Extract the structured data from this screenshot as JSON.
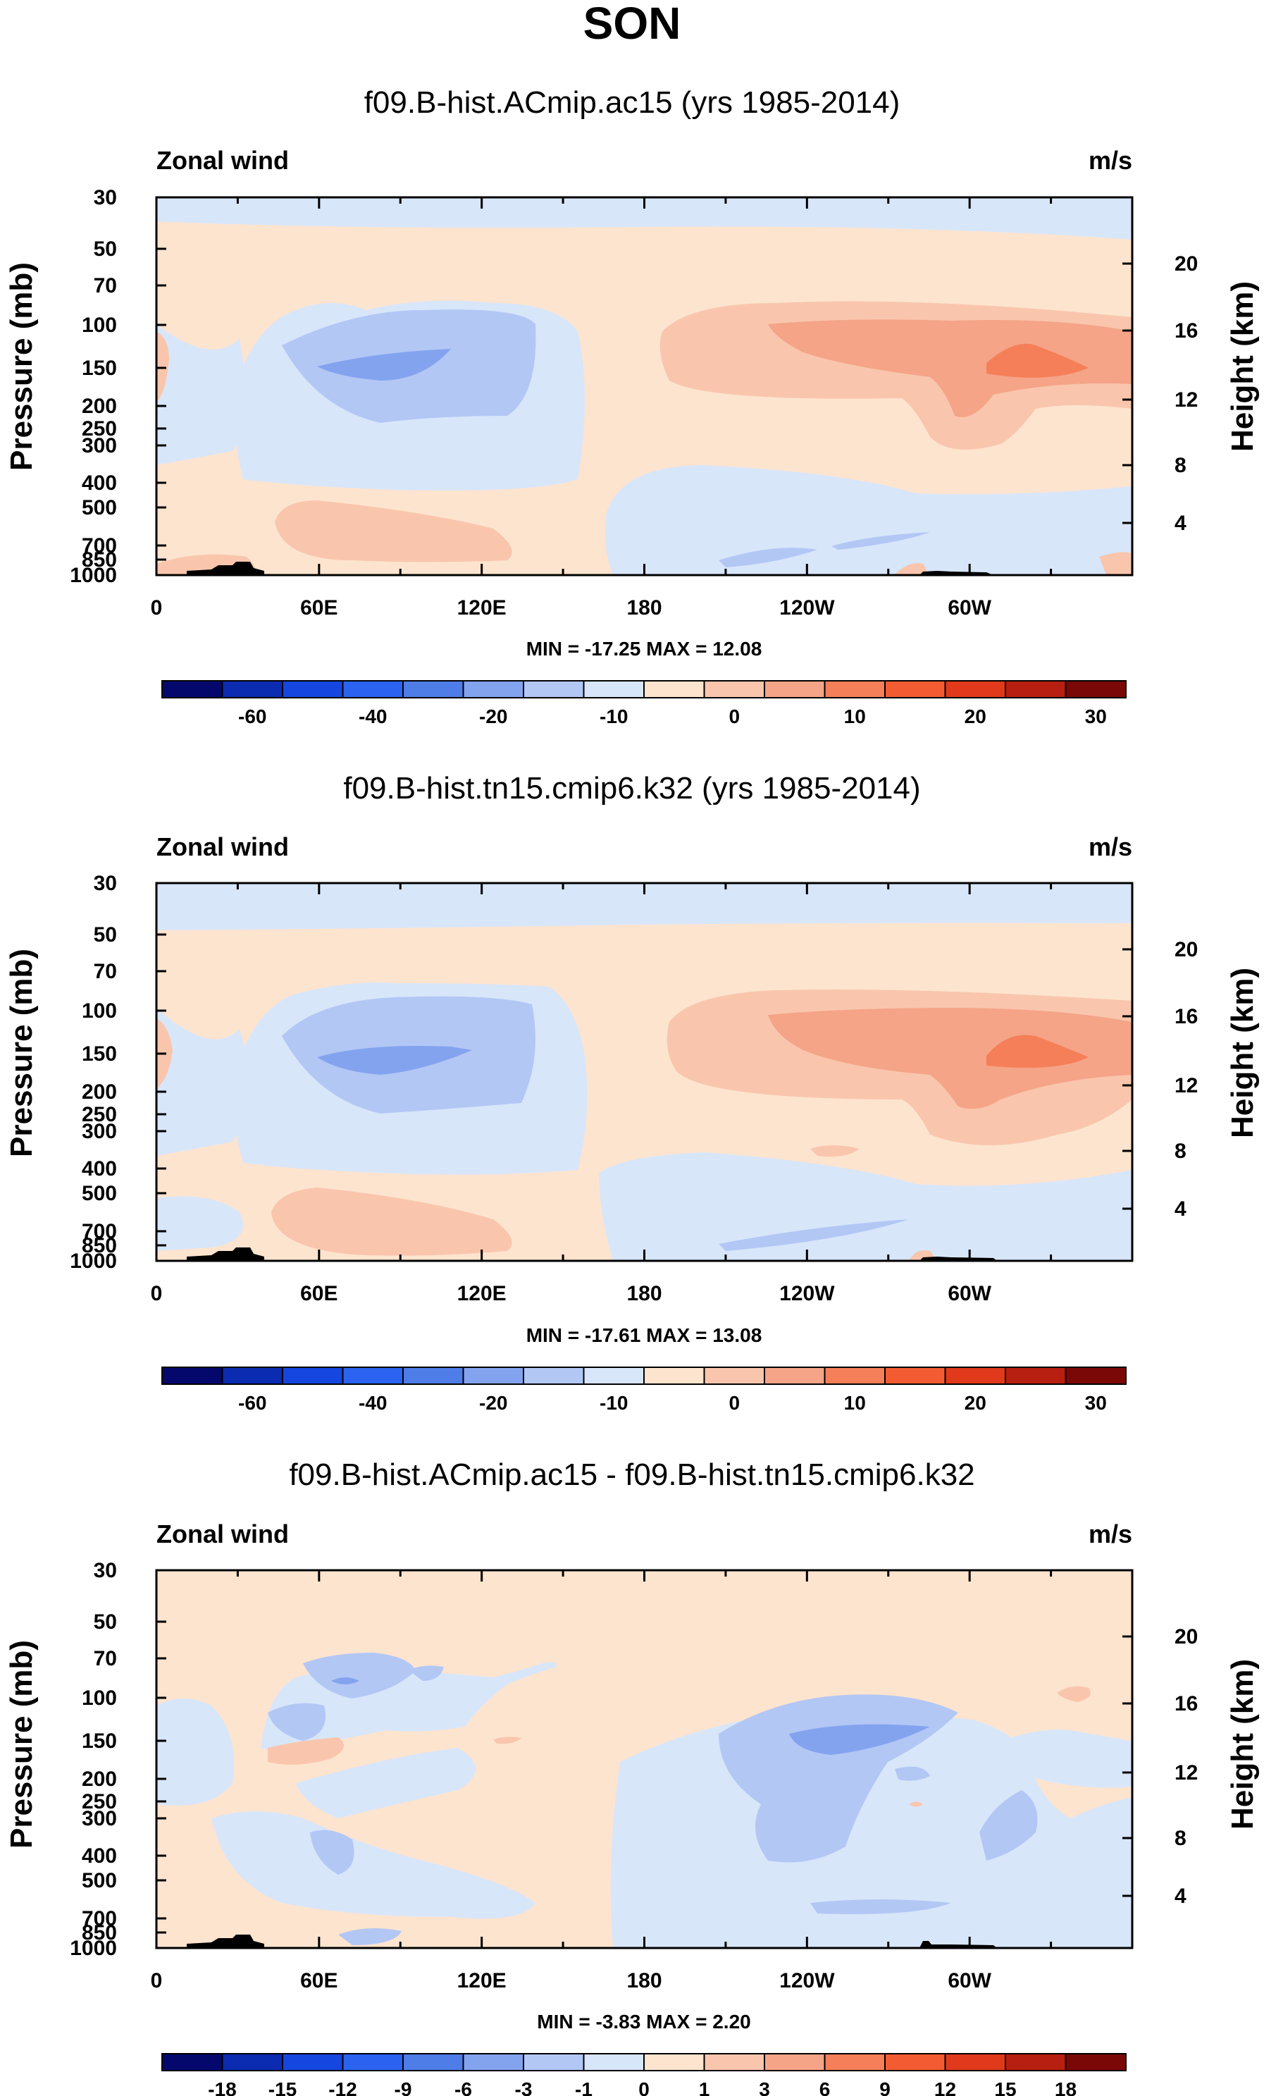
{
  "figure_title": "SON",
  "chart_data": [
    {
      "type": "contour",
      "title": "f09.B-hist.ACmip.ac15 (yrs 1985-2014)",
      "left_label": "Zonal wind",
      "right_label": "m/s",
      "ylabel": "Pressure (mb)",
      "ylabel_right": "Height (km)",
      "x_ticks": [
        "0",
        "60E",
        "120E",
        "180",
        "120W",
        "60W"
      ],
      "x_range": [
        0,
        360
      ],
      "y_ticks": [
        "30",
        "50",
        "70",
        "100",
        "150",
        "200",
        "250",
        "300",
        "400",
        "500",
        "700",
        "850",
        "1000"
      ],
      "y_ticks_right": [
        "20",
        "16",
        "12",
        "8",
        "4"
      ],
      "ylim_mb": [
        1000,
        30
      ],
      "stats": "MIN = -17.25  MAX = 12.08",
      "colorbar_labels": [
        "-60",
        "-40",
        "-20",
        "-10",
        "0",
        "10",
        "20",
        "30"
      ],
      "colorbar_colors": [
        "#04086d",
        "#0b2bb0",
        "#1646e0",
        "#2b63f0",
        "#4f7de8",
        "#84a3ef",
        "#b3c7f5",
        "#d8e6fa",
        "#fde4cf",
        "#f9c6ad",
        "#f5a488",
        "#f57f58",
        "#f35c32",
        "#e0391c",
        "#b71f10",
        "#7a0806"
      ],
      "field_color_keys": {
        "neg10": "#b3c7f5",
        "neg20": "#84a3ef",
        "neg30": "#4f7de8",
        "pos0": "#fde4cf",
        "pos10": "#f9c6ad",
        "pos20": "#f5a488",
        "pos30": "#f57f58",
        "neg0": "#d8e6fa"
      }
    },
    {
      "type": "contour",
      "title": "f09.B-hist.tn15.cmip6.k32 (yrs 1985-2014)",
      "left_label": "Zonal wind",
      "right_label": "m/s",
      "ylabel": "Pressure (mb)",
      "ylabel_right": "Height (km)",
      "x_ticks": [
        "0",
        "60E",
        "120E",
        "180",
        "120W",
        "60W"
      ],
      "x_range": [
        0,
        360
      ],
      "y_ticks": [
        "30",
        "50",
        "70",
        "100",
        "150",
        "200",
        "250",
        "300",
        "400",
        "500",
        "700",
        "850",
        "1000"
      ],
      "y_ticks_right": [
        "20",
        "16",
        "12",
        "8",
        "4"
      ],
      "ylim_mb": [
        1000,
        30
      ],
      "stats": "MIN = -17.61  MAX = 13.08",
      "colorbar_labels": [
        "-60",
        "-40",
        "-20",
        "-10",
        "0",
        "10",
        "20",
        "30"
      ],
      "colorbar_colors": [
        "#04086d",
        "#0b2bb0",
        "#1646e0",
        "#2b63f0",
        "#4f7de8",
        "#84a3ef",
        "#b3c7f5",
        "#d8e6fa",
        "#fde4cf",
        "#f9c6ad",
        "#f5a488",
        "#f57f58",
        "#f35c32",
        "#e0391c",
        "#b71f10",
        "#7a0806"
      ]
    },
    {
      "type": "contour",
      "title": "f09.B-hist.ACmip.ac15 - f09.B-hist.tn15.cmip6.k32",
      "left_label": "Zonal wind",
      "right_label": "m/s",
      "ylabel": "Pressure (mb)",
      "ylabel_right": "Height (km)",
      "x_ticks": [
        "0",
        "60E",
        "120E",
        "180",
        "120W",
        "60W"
      ],
      "x_range": [
        0,
        360
      ],
      "y_ticks": [
        "30",
        "50",
        "70",
        "100",
        "150",
        "200",
        "250",
        "300",
        "400",
        "500",
        "700",
        "850",
        "1000"
      ],
      "y_ticks_right": [
        "20",
        "16",
        "12",
        "8",
        "4"
      ],
      "ylim_mb": [
        1000,
        30
      ],
      "stats": "MIN = -3.83  MAX =  2.20",
      "colorbar_labels": [
        "-18",
        "-15",
        "-12",
        "-9",
        "-6",
        "-3",
        "-1",
        "0",
        "1",
        "3",
        "6",
        "9",
        "12",
        "15",
        "18"
      ],
      "colorbar_colors": [
        "#04086d",
        "#0b2bb0",
        "#1646e0",
        "#2b63f0",
        "#4f7de8",
        "#84a3ef",
        "#b3c7f5",
        "#d8e6fa",
        "#fde4cf",
        "#f9c6ad",
        "#f5a488",
        "#f57f58",
        "#f35c32",
        "#e0391c",
        "#b71f10",
        "#7a0806"
      ]
    }
  ]
}
